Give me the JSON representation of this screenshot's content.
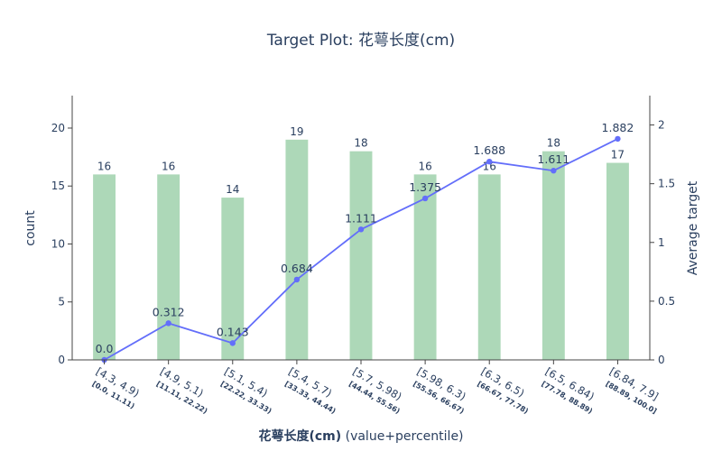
{
  "chart_data": {
    "type": "bar",
    "title": "Target Plot: 花萼长度(cm)",
    "xlabel_bold": "花萼长度(cm)",
    "xlabel_suffix": " (value+percentile)",
    "ylabel": "count",
    "y2label": "Average target",
    "ylim": [
      0,
      22.8
    ],
    "y2lim": [
      0,
      2.25
    ],
    "yticks": [
      0,
      5,
      10,
      15,
      20
    ],
    "y2ticks": [
      "0",
      "0.5",
      "1",
      "1.5",
      "2"
    ],
    "categories": [
      "[4.3, 4.9)",
      "[4.9, 5.1)",
      "[5.1, 5.4)",
      "[5.4, 5.7)",
      "[5.7, 5.98)",
      "[5.98, 6.3)",
      "[6.3, 6.5)",
      "[6.5, 6.84)",
      "[6.84, 7.9]"
    ],
    "percentiles": [
      "[0.0, 11.11)",
      "[11.11, 22.22)",
      "[22.22, 33.33)",
      "[33.33, 44.44)",
      "[44.44, 55.56)",
      "[55.56, 66.67)",
      "[66.67, 77.78)",
      "[77.78, 88.89)",
      "[88.89, 100.0]"
    ],
    "series": [
      {
        "type": "bar",
        "values": [
          16,
          16,
          14,
          19,
          18,
          16,
          16,
          18,
          17
        ],
        "labels": [
          "16",
          "16",
          "14",
          "19",
          "18",
          "16",
          "16",
          "18",
          "17"
        ],
        "color": "#add8b8"
      },
      {
        "type": "line",
        "values": [
          0.0,
          0.312,
          0.143,
          0.684,
          1.111,
          1.375,
          1.688,
          1.611,
          1.882
        ],
        "labels": [
          "0.0",
          "0.312",
          "0.143",
          "0.684",
          "1.111",
          "1.375",
          "1.688",
          "1.611",
          "1.882"
        ],
        "color": "#636efa"
      }
    ]
  }
}
